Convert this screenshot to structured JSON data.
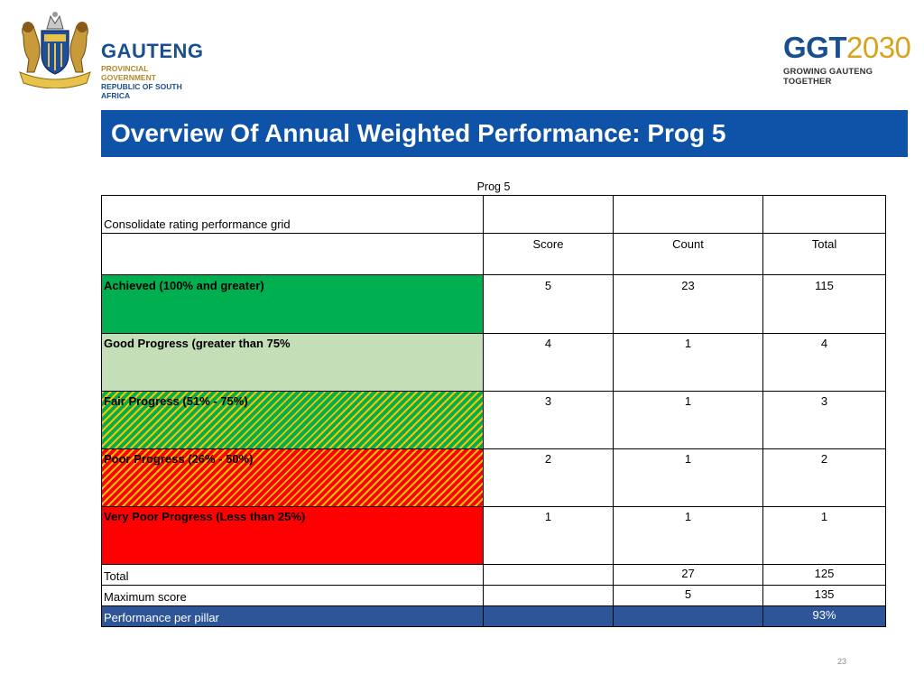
{
  "header": {
    "left_logo": {
      "name": "GAUTENG",
      "line1": "PROVINCIAL GOVERNMENT",
      "line2": "REPUBLIC OF SOUTH AFRICA"
    },
    "right_logo": {
      "name_part1": "GGT",
      "name_part2": "2030",
      "tagline": "GROWING GAUTENG TOGETHER"
    }
  },
  "title": "Overview Of Annual Weighted Performance: Prog 5",
  "table": {
    "caption": "Prog 5",
    "grid_title": "Consolidate rating performance grid",
    "columns": [
      "Score",
      "Count",
      "Total"
    ],
    "rows": [
      {
        "label": "Achieved (100%  and greater)",
        "score": "5",
        "count": "23",
        "total": "115",
        "color": "#00b050"
      },
      {
        "label": "Good Progress (greater than 75%",
        "score": "4",
        "count": "1",
        "total": "4",
        "color": "#c4dfb8"
      },
      {
        "label": "Fair Progress (51% - 75%)",
        "score": "3",
        "count": "1",
        "total": "3",
        "color": "#00b050 / #ffc000 hatched"
      },
      {
        "label": "Poor Progress (26% - 50%)",
        "score": "2",
        "count": "1",
        "total": "2",
        "color": "#ff0000 / #ffc000 hatched"
      },
      {
        "label": "Very Poor Progress (Less than 25%)",
        "score": "1",
        "count": "1",
        "total": "1",
        "color": "#ff0000"
      }
    ],
    "summary": {
      "total": {
        "label": "Total",
        "count": "27",
        "total": "125"
      },
      "maximum": {
        "label": "Maximum score",
        "count": "5",
        "total": "135"
      },
      "performance": {
        "label": "Performance per pillar",
        "total": "93%"
      }
    }
  },
  "page_number": "23",
  "colors": {
    "title_bar": "#0f53a8",
    "performance_row": "#2e5597"
  }
}
